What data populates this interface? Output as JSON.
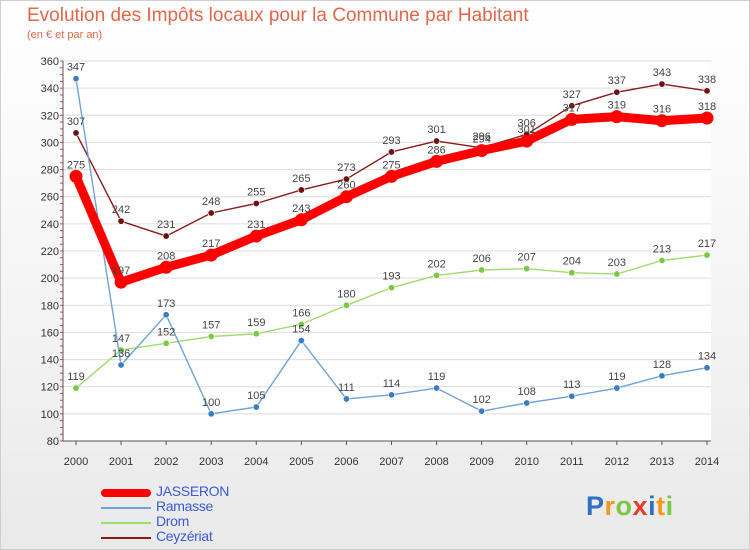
{
  "chart_data": {
    "type": "line",
    "title": "Evolution des Impôts locaux pour la Commune par Habitant",
    "subtitle": "(en € et par an)",
    "xlabel": "",
    "ylabel": "",
    "ylim": [
      80,
      360
    ],
    "yticks": [
      80,
      100,
      120,
      140,
      160,
      180,
      200,
      220,
      240,
      260,
      280,
      300,
      320,
      340,
      360
    ],
    "grid": "horizontal",
    "legend_position": "bottom-left",
    "categories": [
      "2000",
      "2001",
      "2002",
      "2003",
      "2004",
      "2005",
      "2006",
      "2007",
      "2008",
      "2009",
      "2010",
      "2011",
      "2012",
      "2013",
      "2014"
    ],
    "series": [
      {
        "name": "Ceyzériat",
        "color": "#8b1a1a",
        "marker": "#6b1111",
        "values": [
          307,
          242,
          231,
          248,
          255,
          265,
          273,
          293,
          301,
          296,
          306,
          327,
          337,
          343,
          338
        ]
      },
      {
        "name": "Drom",
        "color": "#9fdc6e",
        "marker": "#7ac943",
        "values": [
          119,
          147,
          152,
          157,
          159,
          166,
          180,
          193,
          202,
          206,
          207,
          204,
          203,
          213,
          217
        ]
      },
      {
        "name": "Ramasse",
        "color": "#6ea3d8",
        "marker": "#3a7dc4",
        "values": [
          347,
          136,
          173,
          100,
          105,
          154,
          111,
          114,
          119,
          102,
          108,
          113,
          119,
          128,
          134
        ]
      },
      {
        "name": "JASSERON",
        "color": "#ff0000",
        "marker": "#ff0000",
        "values": [
          275,
          197,
          208,
          217,
          231,
          243,
          260,
          275,
          286,
          294,
          301,
          317,
          319,
          316,
          318
        ]
      }
    ]
  },
  "legend": {
    "items": [
      {
        "label": "JASSERON",
        "color": "#ff0000"
      },
      {
        "label": "Ramasse",
        "color": "#6ea3d8"
      },
      {
        "label": "Drom",
        "color": "#9fdc6e"
      },
      {
        "label": "Ceyzériat",
        "color": "#8b1a1a"
      }
    ]
  },
  "logo": {
    "letters": [
      "P",
      "r",
      "o",
      "x",
      "i",
      "t",
      "i"
    ],
    "colors": [
      "#2f6fc4",
      "#f39a1c",
      "#7ac943",
      "#e23b2c",
      "#2f6fc4",
      "#f39a1c",
      "#7ac943"
    ]
  }
}
